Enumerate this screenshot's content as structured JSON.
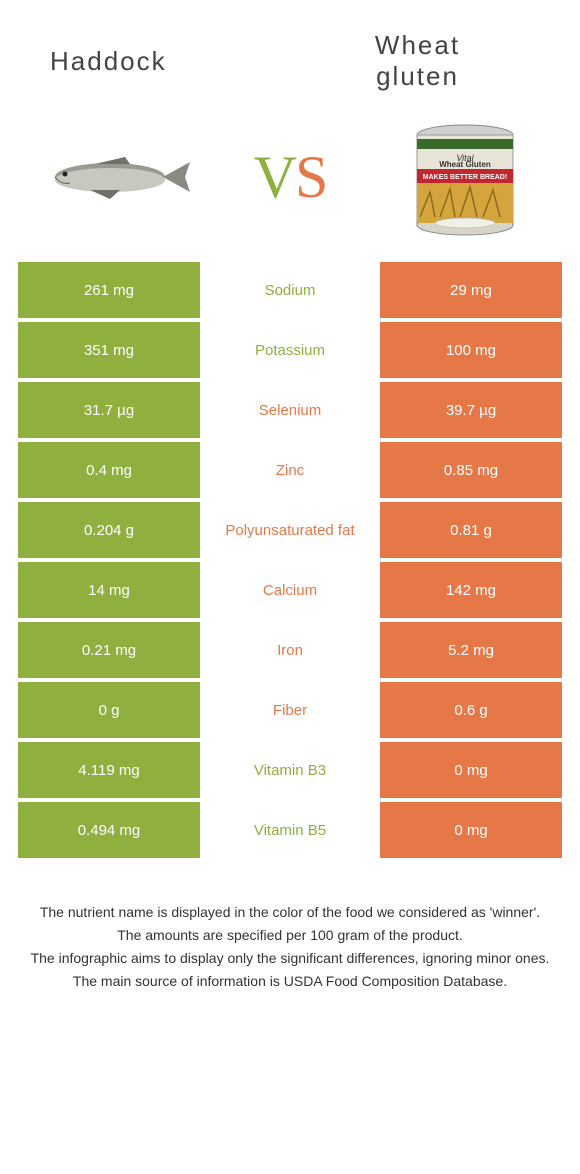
{
  "header": {
    "left_title": "Haddock",
    "right_title_line1": "Wheat",
    "right_title_line2": "gluten",
    "vs_v": "V",
    "vs_s": "S"
  },
  "colors": {
    "left": "#8fb03e",
    "right": "#e67848",
    "text": "#333333",
    "bg": "#ffffff"
  },
  "rows": [
    {
      "left": "261 mg",
      "nutrient": "Sodium",
      "right": "29 mg",
      "winner": "left"
    },
    {
      "left": "351 mg",
      "nutrient": "Potassium",
      "right": "100 mg",
      "winner": "left"
    },
    {
      "left": "31.7 µg",
      "nutrient": "Selenium",
      "right": "39.7 µg",
      "winner": "right"
    },
    {
      "left": "0.4 mg",
      "nutrient": "Zinc",
      "right": "0.85 mg",
      "winner": "right"
    },
    {
      "left": "0.204 g",
      "nutrient": "Polyunsaturated fat",
      "right": "0.81 g",
      "winner": "right"
    },
    {
      "left": "14 mg",
      "nutrient": "Calcium",
      "right": "142 mg",
      "winner": "right"
    },
    {
      "left": "0.21 mg",
      "nutrient": "Iron",
      "right": "5.2 mg",
      "winner": "right"
    },
    {
      "left": "0 g",
      "nutrient": "Fiber",
      "right": "0.6 g",
      "winner": "right"
    },
    {
      "left": "4.119 mg",
      "nutrient": "Vitamin B3",
      "right": "0 mg",
      "winner": "left"
    },
    {
      "left": "0.494 mg",
      "nutrient": "Vitamin B5",
      "right": "0 mg",
      "winner": "left"
    }
  ],
  "footer": {
    "line1": "The nutrient name is displayed in the color of the food we considered as 'winner'.",
    "line2": "The amounts are specified per 100 gram of the product.",
    "line3": "The infographic aims to display only the significant differences, ignoring minor ones.",
    "line4": "The main source of information is USDA Food Composition Database."
  },
  "product_label": {
    "brand_top": "Vital",
    "brand_main": "Wheat Gluten",
    "tagline": "MAKES BETTER BREAD!"
  }
}
